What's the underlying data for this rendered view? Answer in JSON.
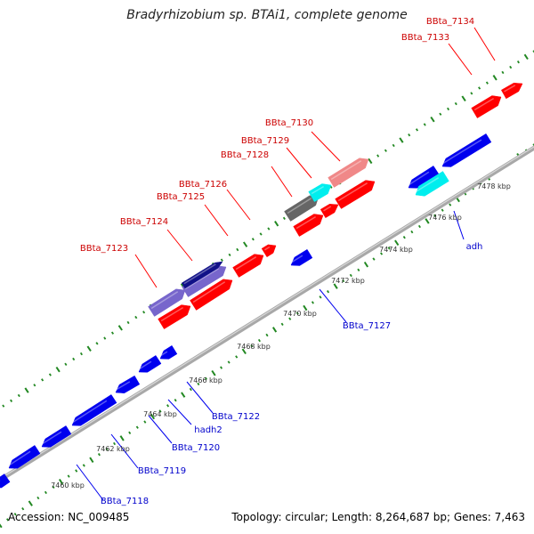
{
  "title": "Bradyrhizobium sp. BTAi1, complete genome",
  "footer": {
    "accession": "Accession: NC_009485",
    "summary": "Topology: circular; Length: 8,264,687 bp; Genes: 7,463"
  },
  "colors": {
    "forward": "#ff0000",
    "reverse": "#0000ee",
    "gray": "#666666",
    "cyan": "#00eeee",
    "pink": "#f08888",
    "purple": "#7766cc",
    "navy": "#111188",
    "tick": "#228822",
    "backbone": "#999999"
  },
  "scale_labels": [
    "7460 kbp",
    "7462 kbp",
    "7464 kbp",
    "7466 kbp",
    "7468 kbp",
    "7470 kbp",
    "7472 kbp",
    "7474 kbp",
    "7476 kbp",
    "7478 kbp"
  ],
  "gene_labels_forward": [
    "BBta_7123",
    "BBta_7124",
    "BBta_7125",
    "BBta_7126",
    "BBta_7128",
    "BBta_7129",
    "BBta_7130",
    "BBta_7133",
    "BBta_7134"
  ],
  "gene_labels_reverse": [
    "BBta_7118",
    "BBta_7119",
    "BBta_7120",
    "hadh2",
    "BBta_7122",
    "BBta_7127",
    "adh"
  ]
}
